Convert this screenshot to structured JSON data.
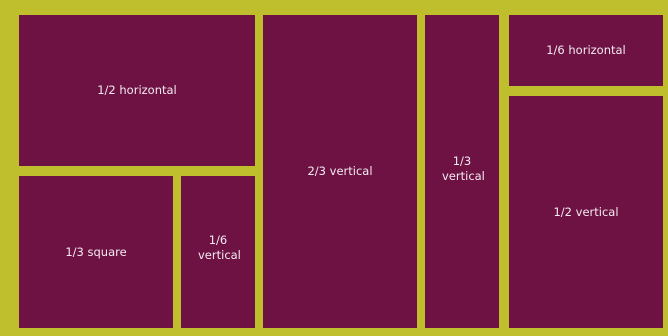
{
  "colors": {
    "background": "#bfbf2e",
    "tile": "#6e1244",
    "text": "#f3eaf0"
  },
  "tiles": [
    {
      "label": "1/2 horizontal"
    },
    {
      "label": "1/3 square"
    },
    {
      "label": "1/6 vertical"
    },
    {
      "label": "2/3 vertical"
    },
    {
      "label": "1/3 vertical"
    },
    {
      "label": "1/6 horizontal"
    },
    {
      "label": "1/2 vertical"
    }
  ]
}
